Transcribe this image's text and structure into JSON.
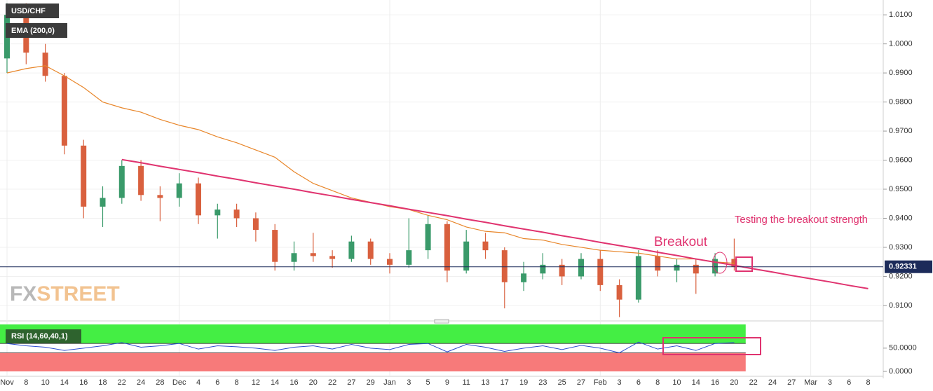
{
  "header": {
    "logo_fx": "FX",
    "logo_street": "STREET"
  },
  "chart_data": [
    {
      "type": "candlestick",
      "title": "USD/CHF",
      "categories": [
        "Nov",
        "8",
        "10",
        "14",
        "16",
        "18",
        "22",
        "24",
        "28",
        "Dec",
        "4",
        "6",
        "8",
        "12",
        "14",
        "16",
        "20",
        "22",
        "27",
        "29",
        "Jan",
        "3",
        "5",
        "9",
        "11",
        "13",
        "17",
        "19",
        "23",
        "25",
        "27",
        "Feb",
        "3",
        "6",
        "8",
        "10",
        "14",
        "16",
        "20",
        "22",
        "24",
        "27",
        "Mar",
        "3",
        "6",
        "8"
      ],
      "open": [
        0.995,
        1.01,
        0.997,
        0.989,
        0.965,
        0.944,
        0.947,
        0.958,
        0.948,
        0.947,
        0.952,
        0.941,
        0.943,
        0.94,
        0.936,
        0.925,
        0.928,
        0.927,
        0.926,
        0.932,
        0.926,
        0.924,
        0.929,
        0.938,
        0.922,
        0.932,
        0.929,
        0.918,
        0.921,
        0.924,
        0.92,
        0.926,
        0.917,
        0.912,
        0.927,
        0.922,
        0.924,
        0.921,
        0.926,
        null,
        null,
        null,
        null,
        null,
        null,
        null
      ],
      "high": [
        1.014,
        1.014,
        1.0,
        0.99,
        0.967,
        0.951,
        0.96,
        0.96,
        0.951,
        0.9555,
        0.954,
        0.945,
        0.945,
        0.942,
        0.938,
        0.932,
        0.935,
        0.929,
        0.934,
        0.933,
        0.928,
        0.94,
        0.941,
        0.939,
        0.936,
        0.935,
        0.93,
        0.925,
        0.928,
        0.926,
        0.928,
        0.929,
        0.919,
        0.929,
        0.929,
        0.926,
        0.926,
        0.928,
        0.933,
        null,
        null,
        null,
        null,
        null,
        null,
        null
      ],
      "low": [
        0.99,
        0.993,
        0.987,
        0.962,
        0.94,
        0.937,
        0.945,
        0.946,
        0.939,
        0.944,
        0.938,
        0.933,
        0.937,
        0.932,
        0.922,
        0.922,
        0.925,
        0.923,
        0.925,
        0.924,
        0.921,
        0.923,
        0.926,
        0.918,
        0.921,
        0.926,
        0.909,
        0.915,
        0.919,
        0.917,
        0.919,
        0.915,
        0.906,
        0.911,
        0.92,
        0.918,
        0.914,
        0.92,
        0.922,
        null,
        null,
        null,
        null,
        null,
        null,
        null
      ],
      "close": [
        1.01,
        0.997,
        0.989,
        0.965,
        0.944,
        0.947,
        0.958,
        0.948,
        0.947,
        0.952,
        0.941,
        0.943,
        0.94,
        0.936,
        0.925,
        0.928,
        0.927,
        0.926,
        0.932,
        0.926,
        0.924,
        0.929,
        0.938,
        0.922,
        0.932,
        0.929,
        0.918,
        0.921,
        0.924,
        0.92,
        0.926,
        0.917,
        0.912,
        0.927,
        0.922,
        0.924,
        0.921,
        0.926,
        0.9233,
        null,
        null,
        null,
        null,
        null,
        null,
        null
      ],
      "up_color": "#3a9a6a",
      "down_color": "#d9603e",
      "series": [
        {
          "name": "EMA (200,0)",
          "color": "#e8862a",
          "values": [
            0.99,
            0.9915,
            0.9925,
            0.989,
            0.985,
            0.98,
            0.978,
            0.9765,
            0.974,
            0.972,
            0.9705,
            0.968,
            0.966,
            0.9635,
            0.961,
            0.956,
            0.952,
            0.9495,
            0.947,
            0.9455,
            0.944,
            0.943,
            0.941,
            0.9395,
            0.937,
            0.9355,
            0.935,
            0.933,
            0.9325,
            0.931,
            0.93,
            0.929,
            0.9285,
            0.928,
            0.927,
            0.926,
            0.926,
            0.925,
            0.9245,
            null,
            null,
            null,
            null,
            null,
            null,
            null
          ]
        },
        {
          "color": "#e0336f",
          "values": [
            null,
            null,
            null,
            null,
            null,
            null,
            0.9602,
            0.9591,
            0.9579,
            0.9568,
            0.9557,
            0.9545,
            0.9534,
            0.9522,
            0.9511,
            0.95,
            0.9488,
            0.9477,
            0.9465,
            0.9454,
            0.9443,
            0.9431,
            0.942,
            0.9409,
            0.9397,
            0.9386,
            0.9374,
            0.9363,
            0.9352,
            0.934,
            0.9329,
            0.9317,
            0.9306,
            0.9295,
            0.9283,
            0.9272,
            0.926,
            0.9249,
            0.9238,
            0.9226,
            0.9215,
            0.9203,
            0.9192,
            0.9181,
            0.9169,
            0.9158
          ]
        }
      ],
      "ylim": [
        0.9054,
        1.0151
      ],
      "yticks": [
        {
          "value": 0.91,
          "label": "0.9100"
        },
        {
          "value": 0.92,
          "label": "0.9200"
        },
        {
          "value": 0.93,
          "label": "0.9300"
        },
        {
          "value": 0.94,
          "label": "0.9400"
        },
        {
          "value": 0.95,
          "label": "0.9500"
        },
        {
          "value": 0.96,
          "label": "0.9600"
        },
        {
          "value": 0.97,
          "label": "0.9700"
        },
        {
          "value": 0.98,
          "label": "0.9800"
        },
        {
          "value": 0.99,
          "label": "0.9900"
        },
        {
          "value": 1.0,
          "label": "1.0000"
        },
        {
          "value": 1.01,
          "label": "1.0100"
        }
      ],
      "current_price": 0.92331,
      "current_price_color": "#1c2b5a",
      "grid": true,
      "annotations": [
        "Breakout",
        "Testing the breakout strength"
      ]
    },
    {
      "type": "rsi",
      "title": "RSI (14,60,40,1)",
      "color": "#2a4bd0",
      "values": [
        60,
        55,
        52,
        45,
        50,
        55,
        62,
        52,
        55,
        60,
        48,
        55,
        53,
        50,
        45,
        52,
        55,
        48,
        58,
        50,
        47,
        58,
        60,
        42,
        58,
        52,
        43,
        50,
        55,
        47,
        56,
        50,
        40,
        63,
        48,
        55,
        45,
        60,
        62,
        null,
        null,
        null,
        null,
        null,
        null,
        null
      ],
      "upper_band": 60,
      "lower_band": 40,
      "upper_color": "#44ee44",
      "lower_color": "#f77a7a",
      "ylim": [
        -7.5,
        101
      ],
      "yticks": [
        {
          "value": 0,
          "label": "0.0000"
        },
        {
          "value": 50,
          "label": "50.0000"
        }
      ]
    }
  ]
}
